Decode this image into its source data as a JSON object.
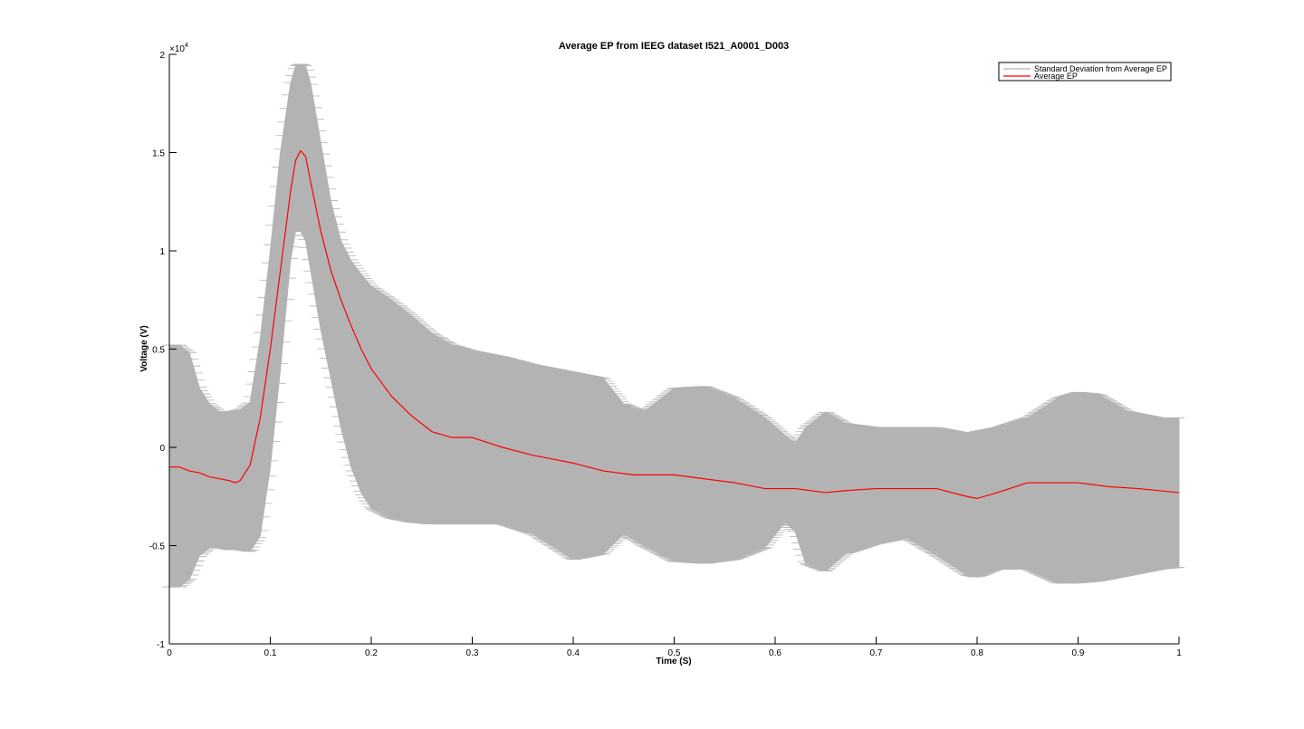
{
  "chart_data": {
    "type": "line",
    "title": "Average EP from IEEG dataset I521_A0001_D003",
    "xlabel": "Time (S)",
    "ylabel": "Voltage (V)",
    "xlim": [
      0,
      1
    ],
    "ylim": [
      -10000,
      20000
    ],
    "y_exponent_label": "×10",
    "y_exponent_power": "4",
    "x_ticks": [
      0,
      0.1,
      0.2,
      0.3,
      0.4,
      0.5,
      0.6,
      0.7,
      0.8,
      0.9,
      1
    ],
    "x_tick_labels": [
      "0",
      "0.1",
      "0.2",
      "0.3",
      "0.4",
      "0.5",
      "0.6",
      "0.7",
      "0.8",
      "0.9",
      "1"
    ],
    "y_ticks": [
      -10000,
      -5000,
      0,
      5000,
      10000,
      15000,
      20000
    ],
    "y_tick_labels": [
      "-1",
      "-0.5",
      "0",
      "0.5",
      "1",
      "1.5",
      "2"
    ],
    "grid": false,
    "legend_position": "top-right",
    "series": [
      {
        "name": "Standard Deviation from Average EP",
        "style": "band",
        "color": "#b3b3b3",
        "x": [
          0,
          0.01,
          0.02,
          0.03,
          0.04,
          0.05,
          0.06,
          0.07,
          0.08,
          0.09,
          0.1,
          0.11,
          0.12,
          0.125,
          0.13,
          0.135,
          0.14,
          0.15,
          0.16,
          0.17,
          0.18,
          0.19,
          0.2,
          0.22,
          0.24,
          0.26,
          0.28,
          0.3,
          0.33,
          0.36,
          0.4,
          0.43,
          0.45,
          0.47,
          0.5,
          0.53,
          0.56,
          0.59,
          0.61,
          0.62,
          0.63,
          0.65,
          0.67,
          0.7,
          0.73,
          0.76,
          0.79,
          0.8,
          0.82,
          0.85,
          0.88,
          0.9,
          0.92,
          0.95,
          0.98,
          1.0
        ],
        "upper": [
          5200,
          5200,
          4800,
          3000,
          2200,
          1800,
          1800,
          1900,
          2300,
          5500,
          10000,
          15000,
          18500,
          19400,
          19500,
          19400,
          18500,
          15500,
          12500,
          10500,
          9500,
          8800,
          8200,
          7500,
          6700,
          5800,
          5200,
          4900,
          4600,
          4200,
          3800,
          3500,
          2200,
          1800,
          3000,
          3100,
          2500,
          1500,
          600,
          200,
          1000,
          1800,
          1200,
          1000,
          1000,
          1000,
          700,
          800,
          1000,
          1500,
          2500,
          2800,
          2700,
          1800,
          1500,
          1500
        ],
        "lower": [
          -7100,
          -7100,
          -6700,
          -5500,
          -5100,
          -5100,
          -5200,
          -5200,
          -5300,
          -4500,
          -1000,
          4000,
          9500,
          11000,
          11000,
          10500,
          9000,
          6000,
          3500,
          1000,
          -1000,
          -2300,
          -3100,
          -3600,
          -3800,
          -3900,
          -3900,
          -3900,
          -3900,
          -4400,
          -5700,
          -5400,
          -4400,
          -5000,
          -5800,
          -5900,
          -5700,
          -5100,
          -3800,
          -4300,
          -5900,
          -6300,
          -5400,
          -4900,
          -4600,
          -5500,
          -6500,
          -6600,
          -6200,
          -6200,
          -6900,
          -6900,
          -6800,
          -6500,
          -6200,
          -6100
        ]
      },
      {
        "name": "Average EP",
        "style": "line",
        "color": "#ff0000",
        "x": [
          0,
          0.01,
          0.02,
          0.03,
          0.04,
          0.05,
          0.06,
          0.065,
          0.07,
          0.08,
          0.09,
          0.1,
          0.11,
          0.12,
          0.125,
          0.13,
          0.135,
          0.14,
          0.15,
          0.16,
          0.17,
          0.18,
          0.19,
          0.2,
          0.22,
          0.24,
          0.26,
          0.28,
          0.3,
          0.33,
          0.36,
          0.4,
          0.43,
          0.46,
          0.5,
          0.53,
          0.56,
          0.59,
          0.62,
          0.65,
          0.67,
          0.7,
          0.73,
          0.76,
          0.79,
          0.8,
          0.82,
          0.85,
          0.87,
          0.9,
          0.93,
          0.96,
          1.0
        ],
        "y": [
          -1000,
          -1000,
          -1200,
          -1300,
          -1500,
          -1600,
          -1700,
          -1800,
          -1700,
          -900,
          1500,
          5000,
          9000,
          13000,
          14600,
          15100,
          14800,
          13500,
          11000,
          9000,
          7500,
          6200,
          5000,
          4000,
          2600,
          1600,
          800,
          500,
          500,
          0,
          -400,
          -800,
          -1200,
          -1400,
          -1400,
          -1600,
          -1800,
          -2100,
          -2100,
          -2300,
          -2200,
          -2100,
          -2100,
          -2100,
          -2500,
          -2600,
          -2300,
          -1800,
          -1800,
          -1800,
          -2000,
          -2100,
          -2300
        ]
      }
    ]
  }
}
